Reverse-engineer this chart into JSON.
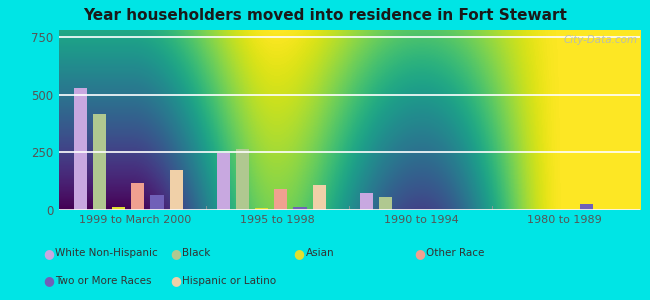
{
  "title": "Year householders moved into residence in Fort Stewart",
  "categories": [
    "1999 to March 2000",
    "1995 to 1998",
    "1990 to 1994",
    "1980 to 1989"
  ],
  "series": {
    "White Non-Hispanic": [
      530,
      245,
      75,
      0
    ],
    "Black": [
      415,
      265,
      55,
      0
    ],
    "Asian": [
      15,
      10,
      0,
      0
    ],
    "Other Race": [
      115,
      90,
      0,
      0
    ],
    "Two or More Races": [
      65,
      15,
      0,
      25
    ],
    "Hispanic or Latino": [
      175,
      110,
      0,
      0
    ]
  },
  "colors": {
    "White Non-Hispanic": "#c8a8e0",
    "Black": "#b0c890",
    "Asian": "#e0e030",
    "Other Race": "#f0a090",
    "Two or More Races": "#7060b8",
    "Hispanic or Latino": "#f0d0a8"
  },
  "ylim": [
    0,
    780
  ],
  "yticks": [
    0,
    250,
    500,
    750
  ],
  "plot_bg": "#e8f5ee",
  "outer_bg": "#00e5e5",
  "watermark": "City-Data.com",
  "legend": [
    [
      "White Non-Hispanic",
      "#c8a8e0"
    ],
    [
      "Black",
      "#b0c890"
    ],
    [
      "Asian",
      "#e0e030"
    ],
    [
      "Other Race",
      "#f0a090"
    ],
    [
      "Two or More Races",
      "#7060b8"
    ],
    [
      "Hispanic or Latino",
      "#f0d0a8"
    ]
  ]
}
